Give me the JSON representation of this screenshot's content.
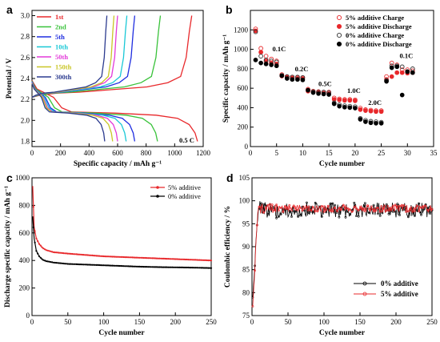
{
  "panels": [
    {
      "id": "a",
      "label": "a",
      "chart_data": {
        "type": "line",
        "xlabel": "Specific capacity / mAh g⁻¹",
        "ylabel": "Potential / V",
        "xlim": [
          0,
          1200
        ],
        "ylim": [
          1.75,
          3.05
        ],
        "xticks": [
          0,
          200,
          400,
          600,
          800,
          1000,
          1200
        ],
        "yticks": [
          1.8,
          2.0,
          2.2,
          2.4,
          2.6,
          2.8,
          3.0
        ],
        "annotation": "0.5 C",
        "legend_position": "top-left",
        "series": [
          {
            "name": "1st",
            "color": "#e8282b",
            "cap": 1160,
            "chg": 1120
          },
          {
            "name": "2nd",
            "color": "#39c23a",
            "cap": 880,
            "chg": 900
          },
          {
            "name": "5th",
            "color": "#1f2de0",
            "cap": 720,
            "chg": 720
          },
          {
            "name": "10th",
            "color": "#19c8d6",
            "cap": 660,
            "chg": 665
          },
          {
            "name": "50th",
            "color": "#e33ad9",
            "cap": 600,
            "chg": 600
          },
          {
            "name": "150th",
            "color": "#c9c627",
            "cap": 565,
            "chg": 575
          },
          {
            "name": "300th",
            "color": "#2c3b8f",
            "cap": 510,
            "chg": 525
          }
        ]
      }
    },
    {
      "id": "b",
      "label": "b",
      "chart_data": {
        "type": "scatter",
        "xlabel": "Cycle number",
        "ylabel": "Specific capacity / mAh g⁻¹",
        "xlim": [
          0,
          35
        ],
        "ylim": [
          0,
          1400
        ],
        "xticks": [
          0,
          5,
          10,
          15,
          20,
          25,
          30,
          35
        ],
        "yticks": [
          0,
          200,
          400,
          600,
          800,
          1000,
          1200
        ],
        "legend_position": "top-right",
        "rate_labels": [
          {
            "text": "0.1C",
            "x": 4.2,
            "y": 980
          },
          {
            "text": "0.2C",
            "x": 8.5,
            "y": 775
          },
          {
            "text": "0.5C",
            "x": 13,
            "y": 620
          },
          {
            "text": "1.0C",
            "x": 18.5,
            "y": 550
          },
          {
            "text": "2.0C",
            "x": 22.5,
            "y": 430
          },
          {
            "text": "0.1C",
            "x": 28.5,
            "y": 910
          }
        ],
        "series": [
          {
            "name": "5% additive Charge",
            "color": "#e8282b",
            "fill": "none",
            "x": [
              1,
              2,
              3,
              4,
              5,
              6,
              7,
              8,
              9,
              10,
              11,
              12,
              13,
              14,
              15,
              16,
              17,
              18,
              19,
              20,
              21,
              22,
              23,
              24,
              25,
              26,
              27,
              28,
              29,
              30,
              31
            ],
            "y": [
              1210,
              1010,
              930,
              900,
              880,
              740,
              720,
              715,
              710,
              710,
              590,
              570,
              565,
              560,
              560,
              500,
              490,
              485,
              485,
              480,
              395,
              380,
              375,
              370,
              370,
              720,
              860,
              840,
              790,
              790,
              780
            ]
          },
          {
            "name": "5% additive Discharge",
            "color": "#e8282b",
            "fill": "#e8282b",
            "x": [
              1,
              2,
              3,
              4,
              5,
              6,
              7,
              8,
              9,
              10,
              11,
              12,
              13,
              14,
              15,
              16,
              17,
              18,
              19,
              20,
              21,
              22,
              23,
              24,
              25,
              26,
              27,
              28,
              29,
              30,
              31
            ],
            "y": [
              1190,
              970,
              880,
              860,
              850,
              725,
              715,
              705,
              700,
              700,
              570,
              560,
              555,
              550,
              545,
              485,
              480,
              475,
              475,
              470,
              380,
              370,
              365,
              360,
              360,
              690,
              720,
              760,
              760,
              755,
              760
            ]
          },
          {
            "name": "0% additive Charge",
            "color": "#333333",
            "fill": "none",
            "x": [
              1,
              2,
              3,
              4,
              5,
              6,
              7,
              8,
              9,
              10,
              11,
              12,
              13,
              14,
              15,
              16,
              17,
              18,
              19,
              20,
              21,
              22,
              23,
              24,
              25,
              26,
              27,
              28,
              29,
              30,
              31
            ],
            "y": [
              1180,
              930,
              890,
              880,
              870,
              730,
              720,
              715,
              715,
              710,
              580,
              565,
              560,
              560,
              555,
              450,
              430,
              420,
              415,
              410,
              290,
              270,
              260,
              255,
              250,
              680,
              830,
              830,
              820,
              770,
              800
            ]
          },
          {
            "name": "0% additive Discharge",
            "color": "#000000",
            "fill": "#000000",
            "x": [
              1,
              2,
              3,
              4,
              5,
              6,
              7,
              8,
              9,
              10,
              11,
              12,
              13,
              14,
              15,
              16,
              17,
              18,
              19,
              20,
              21,
              22,
              23,
              24,
              25,
              26,
              27,
              28,
              29,
              30,
              31
            ],
            "y": [
              890,
              860,
              850,
              840,
              830,
              730,
              700,
              690,
              690,
              685,
              580,
              555,
              545,
              540,
              535,
              440,
              415,
              405,
              400,
              395,
              280,
              255,
              245,
              240,
              240,
              670,
              810,
              820,
              530,
              770,
              760
            ]
          }
        ]
      }
    },
    {
      "id": "c",
      "label": "c",
      "chart_data": {
        "type": "line",
        "xlabel": "Cycle number",
        "ylabel": "Discharge specific capacity / mAh g⁻¹",
        "xlim": [
          0,
          250
        ],
        "ylim": [
          0,
          1000
        ],
        "xticks": [
          0,
          50,
          100,
          150,
          200,
          250
        ],
        "yticks": [
          0,
          200,
          400,
          600,
          800,
          1000
        ],
        "legend_position": "top-right",
        "series": [
          {
            "name": "5% additive",
            "color": "#e8282b",
            "x": [
              1,
              3,
              6,
              10,
              15,
              20,
              30,
              40,
              50,
              75,
              100,
              125,
              150,
              175,
              200,
              225,
              250
            ],
            "y": [
              940,
              640,
              560,
              520,
              490,
              475,
              460,
              455,
              450,
              440,
              430,
              425,
              420,
              415,
              410,
              405,
              400
            ]
          },
          {
            "name": "0% additive",
            "color": "#000000",
            "x": [
              1,
              3,
              6,
              10,
              15,
              20,
              30,
              40,
              50,
              75,
              100,
              125,
              150,
              175,
              200,
              225,
              250
            ],
            "y": [
              720,
              560,
              470,
              430,
              405,
              395,
              385,
              380,
              375,
              370,
              365,
              360,
              355,
              352,
              350,
              348,
              345
            ]
          }
        ]
      }
    },
    {
      "id": "d",
      "label": "d",
      "chart_data": {
        "type": "line",
        "xlabel": "Cycle number",
        "ylabel": "Coulombic efficiency / %",
        "xlim": [
          0,
          250
        ],
        "ylim": [
          75,
          105
        ],
        "xticks": [
          0,
          50,
          100,
          150,
          200,
          250
        ],
        "yticks": [
          75,
          80,
          85,
          90,
          95,
          100,
          105
        ],
        "legend_position": "bottom-right",
        "series": [
          {
            "name": "0% additive",
            "color": "#000000",
            "mean": 98,
            "noise": 1.6,
            "x0": 1,
            "y0": 79
          },
          {
            "name": "5% additive",
            "color": "#e8282b",
            "mean": 98.3,
            "noise": 0.8,
            "x0": 1,
            "y0": 77
          }
        ]
      }
    }
  ]
}
